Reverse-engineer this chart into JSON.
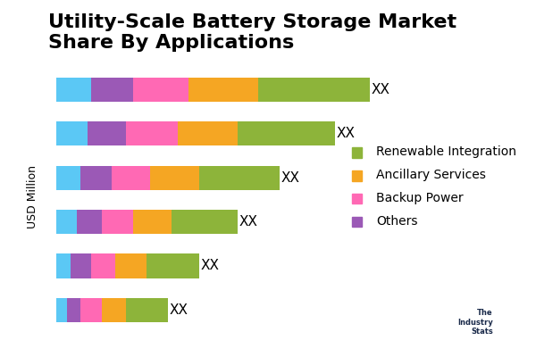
{
  "title": "Utility-Scale Battery Storage Market\nShare By Applications",
  "ylabel": "USD Million",
  "categories": [
    "",
    "",
    "",
    "",
    "",
    ""
  ],
  "segments": [
    "cyan",
    "others",
    "backup",
    "ancillary",
    "renewable"
  ],
  "colors": {
    "cyan": "#5BC8F5",
    "others": "#9B59B6",
    "backup": "#FF69B4",
    "ancillary": "#F5A623",
    "renewable": "#8DB43A"
  },
  "legend_labels": {
    "renewable": "Renewable Integration",
    "ancillary": "Ancillary Services",
    "backup": "Backup Power",
    "others": "Others"
  },
  "bar_data": [
    {
      "cyan": 1.0,
      "others": 1.2,
      "backup": 1.6,
      "ancillary": 2.0,
      "renewable": 3.2
    },
    {
      "cyan": 0.9,
      "others": 1.1,
      "backup": 1.5,
      "ancillary": 1.7,
      "renewable": 2.8
    },
    {
      "cyan": 0.7,
      "others": 0.9,
      "backup": 1.1,
      "ancillary": 1.4,
      "renewable": 2.3
    },
    {
      "cyan": 0.6,
      "others": 0.7,
      "backup": 0.9,
      "ancillary": 1.1,
      "renewable": 1.9
    },
    {
      "cyan": 0.4,
      "others": 0.6,
      "backup": 0.7,
      "ancillary": 0.9,
      "renewable": 1.5
    },
    {
      "cyan": 0.3,
      "others": 0.4,
      "backup": 0.6,
      "ancillary": 0.7,
      "renewable": 1.2
    }
  ],
  "label_text": "XX",
  "background_color": "#FFFFFF",
  "title_fontsize": 16,
  "bar_height": 0.55,
  "label_fontsize": 11,
  "legend_fontsize": 10,
  "ylabel_fontsize": 9
}
